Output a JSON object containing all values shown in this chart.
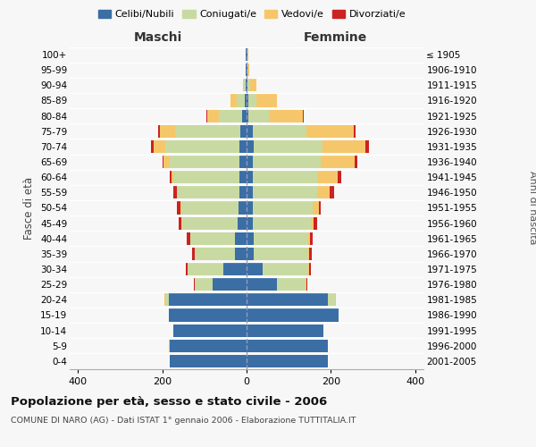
{
  "age_groups": [
    "100+",
    "95-99",
    "90-94",
    "85-89",
    "80-84",
    "75-79",
    "70-74",
    "65-69",
    "60-64",
    "55-59",
    "50-54",
    "45-49",
    "40-44",
    "35-39",
    "30-34",
    "25-29",
    "20-24",
    "15-19",
    "10-14",
    "5-9",
    "0-4"
  ],
  "birth_years": [
    "≤ 1905",
    "1906-1910",
    "1911-1915",
    "1916-1920",
    "1921-1925",
    "1926-1930",
    "1931-1935",
    "1936-1940",
    "1941-1945",
    "1946-1950",
    "1951-1955",
    "1956-1960",
    "1961-1965",
    "1966-1970",
    "1971-1975",
    "1976-1980",
    "1981-1985",
    "1986-1990",
    "1991-1995",
    "1996-2000",
    "2001-2005"
  ],
  "male_celibe": [
    2,
    2,
    3,
    5,
    10,
    15,
    18,
    18,
    18,
    18,
    20,
    22,
    28,
    28,
    55,
    80,
    185,
    185,
    175,
    183,
    183
  ],
  "male_coniugato": [
    0,
    0,
    3,
    18,
    55,
    155,
    175,
    165,
    155,
    145,
    135,
    130,
    105,
    95,
    85,
    42,
    8,
    0,
    0,
    0,
    0
  ],
  "male_vedovo": [
    0,
    1,
    3,
    15,
    28,
    35,
    28,
    14,
    5,
    3,
    2,
    2,
    1,
    1,
    0,
    1,
    2,
    0,
    0,
    2,
    0
  ],
  "male_divorziato": [
    0,
    0,
    0,
    0,
    2,
    4,
    5,
    3,
    5,
    8,
    8,
    8,
    8,
    5,
    5,
    3,
    0,
    0,
    0,
    0,
    0
  ],
  "female_celibe": [
    2,
    2,
    3,
    5,
    5,
    14,
    18,
    14,
    14,
    14,
    14,
    14,
    18,
    18,
    38,
    72,
    193,
    218,
    183,
    193,
    193
  ],
  "female_coniugato": [
    0,
    0,
    5,
    18,
    48,
    128,
    163,
    163,
    153,
    153,
    143,
    138,
    128,
    128,
    108,
    68,
    18,
    0,
    0,
    0,
    0
  ],
  "female_vedovo": [
    2,
    5,
    15,
    50,
    80,
    112,
    102,
    80,
    50,
    30,
    14,
    8,
    5,
    3,
    2,
    2,
    2,
    0,
    0,
    0,
    0
  ],
  "female_divorziato": [
    0,
    0,
    0,
    0,
    2,
    5,
    8,
    5,
    8,
    10,
    5,
    8,
    5,
    5,
    5,
    3,
    0,
    0,
    0,
    0,
    0
  ],
  "colors": {
    "celibe": "#3a6ea5",
    "coniugato": "#c8daa2",
    "vedovo": "#f5c76a",
    "divorziato": "#cc2222"
  },
  "xlim": 420,
  "title": "Popolazione per età, sesso e stato civile - 2006",
  "subtitle": "COMUNE DI NARO (AG) - Dati ISTAT 1° gennaio 2006 - Elaborazione TUTTITALIA.IT",
  "ylabel_left": "Fasce di età",
  "ylabel_right": "Anni di nascita",
  "xlabel_maschi": "Maschi",
  "xlabel_femmine": "Femmine",
  "background_color": "#f7f7f7",
  "legend_labels": [
    "Celibi/Nubili",
    "Coniugati/e",
    "Vedovi/e",
    "Divorziati/e"
  ],
  "legend_colors": [
    "#3a6ea5",
    "#c8daa2",
    "#f5c76a",
    "#cc2222"
  ]
}
